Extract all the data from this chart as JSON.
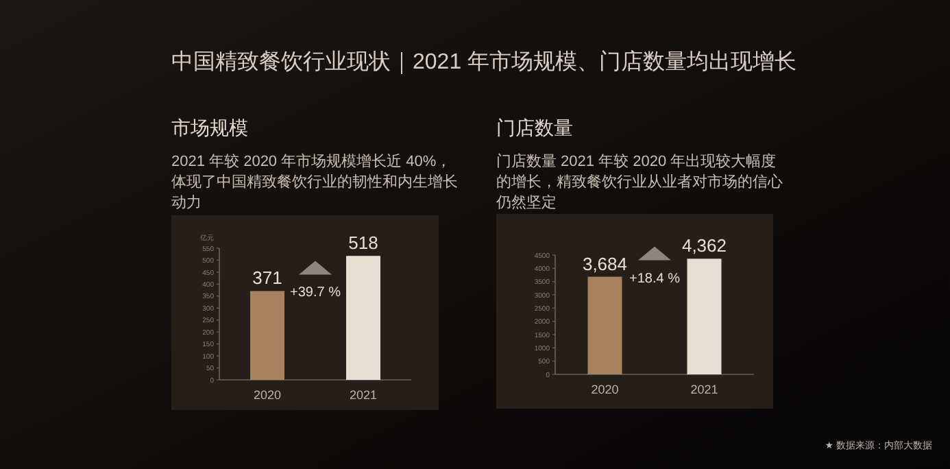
{
  "chart_data": [
    {
      "type": "bar",
      "title": "市场规模",
      "subtitle": "2021 年较 2020 年市场规模增长近 40%，体现了中国精致餐饮行业的韧性和内生增长动力",
      "ylabel": "亿元",
      "categories": [
        "2020",
        "2021"
      ],
      "values": [
        371,
        518
      ],
      "colors": [
        "#a8825e",
        "#e8ddd3"
      ],
      "data_labels": true,
      "ylim": [
        0,
        550
      ],
      "yticks": [
        0,
        50,
        100,
        150,
        200,
        250,
        300,
        350,
        400,
        450,
        500,
        550
      ],
      "annotations": [
        "中国精致餐饮行业现状｜2021 年市场规模、门店数量均出现增长",
        "+39.7 %"
      ]
    },
    {
      "type": "bar",
      "title": "门店数量",
      "subtitle": "门店数量 2021 年较 2020 年出现较大幅度的增长，精致餐饮行业从业者对市场的信心仍然坚定",
      "categories": [
        "2020",
        "2021"
      ],
      "values": [
        3684,
        4362
      ],
      "value_labels": [
        "3,684",
        "4,362"
      ],
      "colors": [
        "#a8825e",
        "#e8ddd3"
      ],
      "ylim": [
        0,
        4500
      ],
      "yticks": [
        0,
        500,
        1000,
        1500,
        2000,
        2500,
        3000,
        3500,
        4000,
        4500
      ],
      "annotations": [
        "+18.4 %",
        "★ 数据来源：内部大数据"
      ]
    }
  ]
}
